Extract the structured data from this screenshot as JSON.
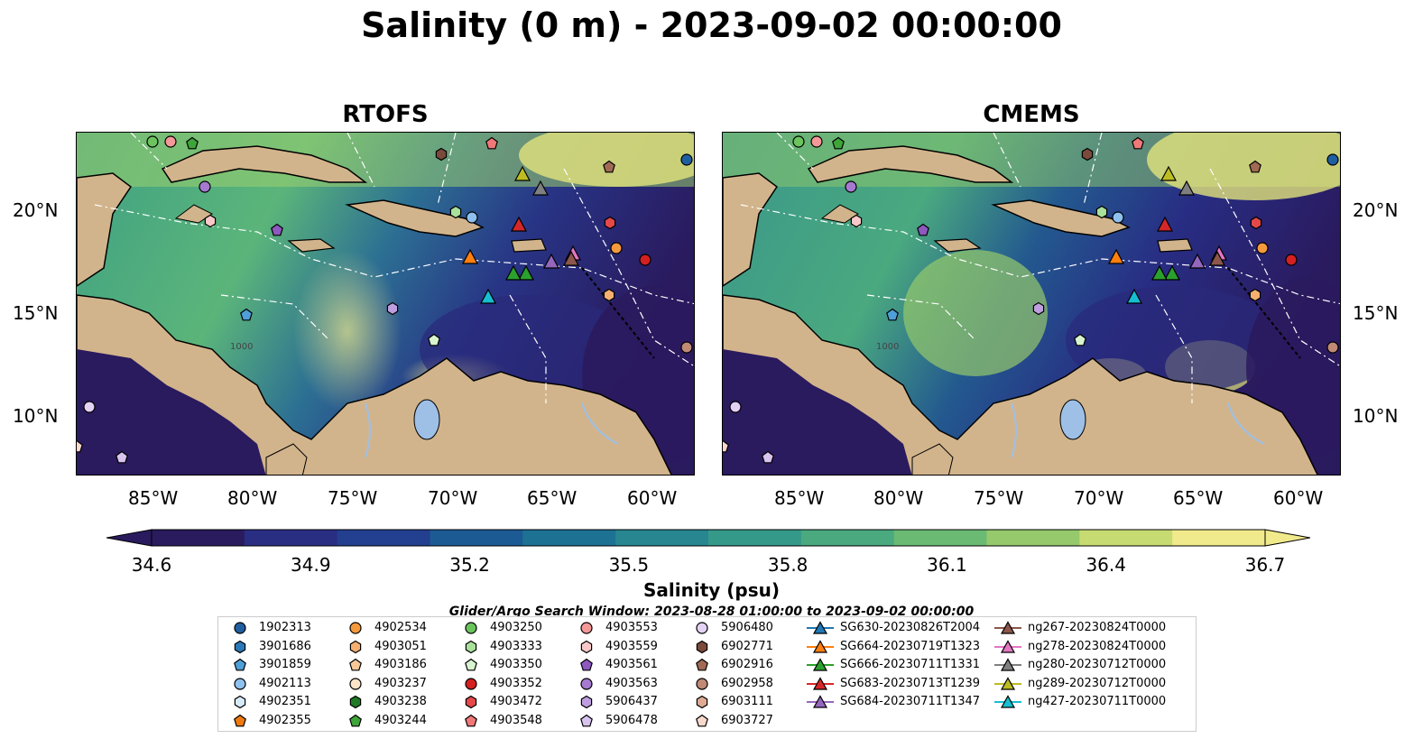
{
  "title": "Salinity (0 m) - 2023-09-02 00:00:00",
  "panels": [
    {
      "title": "RTOFS"
    },
    {
      "title": "CMEMS"
    }
  ],
  "axes": {
    "lat_labels": [
      "20°N",
      "15°N",
      "10°N"
    ],
    "lon_labels": [
      "85°W",
      "80°W",
      "75°W",
      "70°W",
      "65°W",
      "60°W"
    ]
  },
  "colorbar": {
    "label": "Salinity (psu)",
    "ticks": [
      "34.6",
      "34.9",
      "35.2",
      "35.5",
      "35.8",
      "36.1",
      "36.4",
      "36.7"
    ],
    "min": 34.6,
    "max": 36.7,
    "colors": [
      "#2a1a5e",
      "#2a2e83",
      "#233f8f",
      "#1c5a94",
      "#1d7193",
      "#27868f",
      "#35998a",
      "#4aa97f",
      "#6aba73",
      "#95c96b",
      "#c6db72",
      "#f0ea8c"
    ]
  },
  "search_window": "Glider/Argo Search Window: 2023-08-28 01:00:00 to 2023-09-02 00:00:00",
  "legend": {
    "columns": [
      [
        {
          "label": "1902313",
          "marker": "circle",
          "color": "#1f5fa0"
        },
        {
          "label": "3901686",
          "marker": "hexagon",
          "color": "#2a78b8"
        },
        {
          "label": "3901859",
          "marker": "pentagon",
          "color": "#4f9fd8"
        },
        {
          "label": "4902113",
          "marker": "circle",
          "color": "#8ec1ee"
        },
        {
          "label": "4902351",
          "marker": "hexagon",
          "color": "#d6eaf8"
        },
        {
          "label": "4902355",
          "marker": "pentagon",
          "color": "#f07a10"
        }
      ],
      [
        {
          "label": "4902534",
          "marker": "circle",
          "color": "#f59a3c"
        },
        {
          "label": "4903051",
          "marker": "hexagon",
          "color": "#f5b070"
        },
        {
          "label": "4903186",
          "marker": "pentagon",
          "color": "#f8c898"
        },
        {
          "label": "4903237",
          "marker": "circle",
          "color": "#fde5c8"
        },
        {
          "label": "4903238",
          "marker": "hexagon",
          "color": "#1e7a25"
        },
        {
          "label": "4903244",
          "marker": "pentagon",
          "color": "#3ea538"
        }
      ],
      [
        {
          "label": "4903250",
          "marker": "circle",
          "color": "#6cc45e"
        },
        {
          "label": "4903333",
          "marker": "hexagon",
          "color": "#a9e09a"
        },
        {
          "label": "4903350",
          "marker": "pentagon",
          "color": "#d8f3cf"
        },
        {
          "label": "4903352",
          "marker": "circle",
          "color": "#d42020"
        },
        {
          "label": "4903472",
          "marker": "hexagon",
          "color": "#e44848"
        },
        {
          "label": "4903548",
          "marker": "pentagon",
          "color": "#f07878"
        }
      ],
      [
        {
          "label": "4903553",
          "marker": "circle",
          "color": "#f59898"
        },
        {
          "label": "4903559",
          "marker": "hexagon",
          "color": "#fac8c8"
        },
        {
          "label": "4903561",
          "marker": "pentagon",
          "color": "#8e58c0"
        },
        {
          "label": "4903563",
          "marker": "circle",
          "color": "#a67ad0"
        },
        {
          "label": "5906437",
          "marker": "hexagon",
          "color": "#bf9ee0"
        },
        {
          "label": "5906478",
          "marker": "pentagon",
          "color": "#d8c4ee"
        }
      ],
      [
        {
          "label": "5906480",
          "marker": "circle",
          "color": "#e4d2f4"
        },
        {
          "label": "6902771",
          "marker": "hexagon",
          "color": "#7a4a3a"
        },
        {
          "label": "6902916",
          "marker": "pentagon",
          "color": "#a06a55"
        },
        {
          "label": "6902958",
          "marker": "circle",
          "color": "#c08a75"
        },
        {
          "label": "6903111",
          "marker": "hexagon",
          "color": "#e0aa95"
        },
        {
          "label": "6903727",
          "marker": "pentagon",
          "color": "#f8d8cc"
        }
      ],
      [
        {
          "label": "SG630-20230826T2004",
          "marker": "triangle",
          "color": "#1f77b4"
        },
        {
          "label": "SG664-20230719T1323",
          "marker": "triangle",
          "color": "#ff7f0e"
        },
        {
          "label": "SG666-20230711T1331",
          "marker": "triangle",
          "color": "#2ca02c"
        },
        {
          "label": "SG683-20230713T1239",
          "marker": "triangle",
          "color": "#d62728"
        },
        {
          "label": "SG684-20230711T1347",
          "marker": "triangle",
          "color": "#9467bd"
        }
      ],
      [
        {
          "label": "ng267-20230824T0000",
          "marker": "triangle",
          "color": "#8c564b"
        },
        {
          "label": "ng278-20230824T0000",
          "marker": "triangle",
          "color": "#e377c2"
        },
        {
          "label": "ng280-20230712T0000",
          "marker": "triangle",
          "color": "#7f7f7f"
        },
        {
          "label": "ng289-20230712T0000",
          "marker": "triangle",
          "color": "#bcbd22"
        },
        {
          "label": "ng427-20230711T0000",
          "marker": "triangle",
          "color": "#17becf"
        }
      ]
    ]
  },
  "map_features": {
    "land_color": "#d2b48c",
    "lake_color": "#9ec0e6",
    "river_color": "#9ec0e6",
    "contour_label": "1000"
  }
}
